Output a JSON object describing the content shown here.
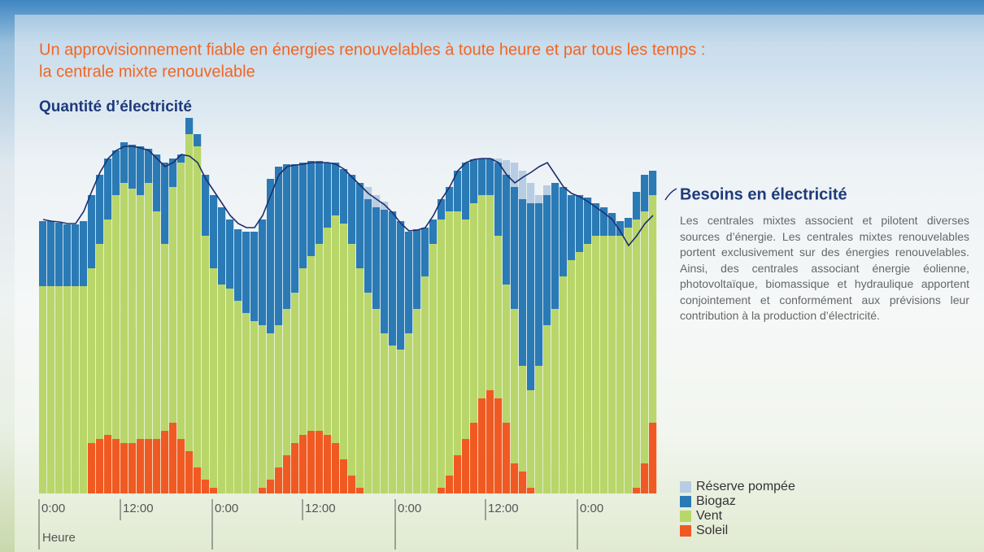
{
  "chart_data": {
    "type": "stacked-bar",
    "title": [
      "Un approvisionnement fiable en énergies renouvelables à toute heure et par tous les temps :",
      "la centrale mixte renouvelable"
    ],
    "y_label": "Quantité d’électricité",
    "x_label": "Heure",
    "description": "Les centrales mixtes associent et pilotent diverses sources d’énergie. Les centrales mixtes renouvelables portent exclusivement sur des énergies renouvelables. Ainsi, des centrales associant énergie éolienne, photovoltaïque, biomassique et hydraulique apportent conjointement et conformément aux prévisions leur contribution à la production d’électricité.",
    "ylim": [
      0,
      460
    ],
    "xticks": [
      {
        "value": 0,
        "label": "0:00"
      },
      {
        "value": 10,
        "label": "12:00"
      },
      {
        "value": 21.3,
        "label": "0:00"
      },
      {
        "value": 32.4,
        "label": "12:00"
      },
      {
        "value": 43.8,
        "label": "0:00"
      },
      {
        "value": 54.9,
        "label": "12:00"
      },
      {
        "value": 66.2,
        "label": "0:00"
      }
    ],
    "series": [
      {
        "name": "Soleil",
        "color": "#f05a22",
        "values": [
          0,
          0,
          0,
          0,
          0,
          0,
          62,
          67,
          72,
          67,
          62,
          62,
          67,
          67,
          67,
          77,
          87,
          67,
          52,
          32,
          17,
          7,
          0,
          0,
          0,
          0,
          0,
          7,
          17,
          32,
          47,
          62,
          72,
          77,
          77,
          72,
          62,
          42,
          22,
          7,
          0,
          0,
          0,
          0,
          0,
          0,
          0,
          0,
          0,
          7,
          22,
          47,
          67,
          87,
          117,
          127,
          117,
          87,
          37,
          27,
          7,
          0,
          0,
          0,
          0,
          0,
          0,
          0,
          0,
          0,
          0,
          0,
          0,
          7,
          37,
          87
        ]
      },
      {
        "name": "Vent",
        "color": "#b9d66a",
        "values": [
          255,
          255,
          255,
          255,
          255,
          255,
          215,
          240,
          265,
          300,
          320,
          313,
          300,
          315,
          280,
          230,
          290,
          340,
          390,
          395,
          300,
          270,
          257,
          252,
          237,
          222,
          212,
          200,
          180,
          175,
          180,
          185,
          205,
          215,
          230,
          255,
          280,
          290,
          285,
          270,
          247,
          227,
          197,
          182,
          177,
          197,
          227,
          267,
          307,
          330,
          325,
          300,
          270,
          270,
          250,
          240,
          200,
          170,
          190,
          130,
          120,
          157,
          207,
          227,
          267,
          287,
          297,
          307,
          317,
          317,
          317,
          317,
          327,
          330,
          310,
          280
        ]
      },
      {
        "name": "Biogaz",
        "color": "#2a7ab5",
        "values": [
          80,
          80,
          78,
          76,
          76,
          80,
          90,
          85,
          75,
          55,
          50,
          54,
          60,
          42,
          70,
          100,
          35,
          10,
          20,
          15,
          75,
          90,
          95,
          85,
          88,
          100,
          110,
          130,
          190,
          195,
          178,
          158,
          130,
          117,
          102,
          80,
          65,
          67,
          85,
          105,
          115,
          125,
          152,
          165,
          158,
          125,
          98,
          60,
          30,
          25,
          30,
          50,
          70,
          54,
          45,
          45,
          90,
          135,
          150,
          205,
          230,
          200,
          160,
          155,
          110,
          80,
          70,
          57,
          40,
          35,
          28,
          18,
          12,
          34,
          45,
          30
        ]
      },
      {
        "name": "Réserve pompée",
        "color": "#b7cde3",
        "values": [
          0,
          0,
          0,
          0,
          0,
          0,
          0,
          0,
          0,
          0,
          0,
          0,
          0,
          0,
          0,
          0,
          0,
          0,
          0,
          0,
          0,
          0,
          0,
          0,
          0,
          0,
          0,
          0,
          0,
          0,
          0,
          0,
          0,
          0,
          0,
          0,
          0,
          0,
          0,
          0,
          15,
          15,
          10,
          0,
          0,
          0,
          0,
          0,
          0,
          0,
          0,
          0,
          0,
          0,
          0,
          0,
          5,
          18,
          30,
          35,
          25,
          10,
          12,
          0,
          0,
          0,
          0,
          0,
          0,
          0,
          0,
          0,
          0,
          0,
          0,
          0
        ]
      }
    ],
    "line": {
      "name": "Besoins en électricité",
      "color": "#1e2f6e",
      "values": [
        337,
        335,
        334,
        332,
        332,
        347,
        372,
        395,
        412,
        422,
        427,
        427,
        425,
        422,
        412,
        402,
        407,
        417,
        415,
        407,
        387,
        372,
        357,
        342,
        332,
        327,
        327,
        342,
        367,
        392,
        402,
        404,
        405,
        407,
        407,
        407,
        405,
        399,
        389,
        379,
        369,
        362,
        355,
        345,
        332,
        323,
        324,
        327,
        342,
        362,
        377,
        397,
        407,
        411,
        412,
        412,
        407,
        392,
        382,
        389,
        395,
        402,
        407,
        392,
        377,
        369,
        365,
        359,
        352,
        345,
        337,
        322,
        305,
        317,
        332,
        342
      ]
    }
  }
}
